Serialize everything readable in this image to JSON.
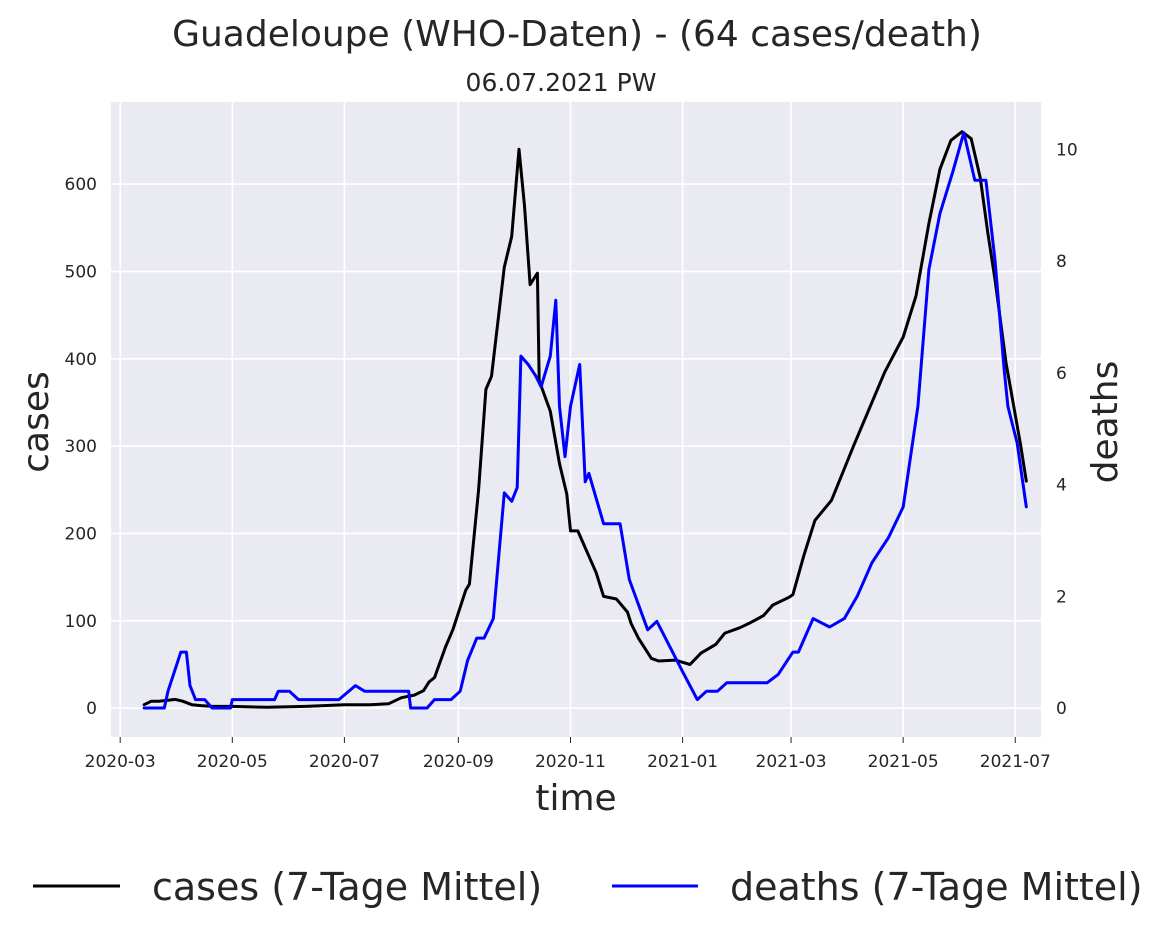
{
  "chart_data": {
    "type": "line",
    "title": "Guadeloupe (WHO-Daten) - (64 cases/death)",
    "subtitle": "06.07.2021 PW",
    "xlabel": "time",
    "ylabel_left": "cases",
    "ylabel_right": "deaths",
    "x_ticks": [
      "2020-03",
      "2020-05",
      "2020-07",
      "2020-09",
      "2020-11",
      "2021-01",
      "2021-03",
      "2021-05",
      "2021-07"
    ],
    "y_left_ticks": [
      0,
      100,
      200,
      300,
      400,
      500,
      600
    ],
    "y_right_ticks": [
      0,
      2,
      4,
      6,
      8,
      10
    ],
    "ylim_left": [
      -33,
      694
    ],
    "ylim_right": [
      -0.52,
      10.85
    ],
    "xlim": [
      "2020-02-25",
      "2021-07-15"
    ],
    "grid": true,
    "legend_placement": "bottom",
    "colors": {
      "cases": "#000000",
      "deaths": "#0000ff",
      "plot_bg": "#eaeaf2",
      "grid": "#ffffff",
      "right_label": "#0000ff"
    },
    "series": [
      {
        "name": "cases (7-Tage Mittel)",
        "axis": "left",
        "color": "#000000",
        "points": [
          [
            "2020-03-14",
            4
          ],
          [
            "2020-03-18",
            8
          ],
          [
            "2020-03-22",
            8
          ],
          [
            "2020-03-27",
            9
          ],
          [
            "2020-03-31",
            10
          ],
          [
            "2020-04-04",
            8
          ],
          [
            "2020-04-09",
            4
          ],
          [
            "2020-04-14",
            3
          ],
          [
            "2020-04-20",
            2
          ],
          [
            "2020-05-01",
            2
          ],
          [
            "2020-05-20",
            1
          ],
          [
            "2020-06-10",
            2
          ],
          [
            "2020-07-01",
            4
          ],
          [
            "2020-07-15",
            4
          ],
          [
            "2020-07-25",
            5
          ],
          [
            "2020-08-01",
            12
          ],
          [
            "2020-08-08",
            15
          ],
          [
            "2020-08-13",
            20
          ],
          [
            "2020-08-16",
            30
          ],
          [
            "2020-08-19",
            35
          ],
          [
            "2020-08-25",
            70
          ],
          [
            "2020-08-29",
            90
          ],
          [
            "2020-09-05",
            135
          ],
          [
            "2020-09-07",
            142
          ],
          [
            "2020-09-12",
            250
          ],
          [
            "2020-09-16",
            365
          ],
          [
            "2020-09-19",
            380
          ],
          [
            "2020-09-26",
            505
          ],
          [
            "2020-09-30",
            540
          ],
          [
            "2020-10-04",
            640
          ],
          [
            "2020-10-07",
            575
          ],
          [
            "2020-10-10",
            485
          ],
          [
            "2020-10-14",
            498
          ],
          [
            "2020-10-15",
            375
          ],
          [
            "2020-10-21",
            340
          ],
          [
            "2020-10-26",
            280
          ],
          [
            "2020-10-30",
            245
          ],
          [
            "2020-11-01",
            203
          ],
          [
            "2020-11-05",
            203
          ],
          [
            "2020-11-15",
            155
          ],
          [
            "2020-11-19",
            128
          ],
          [
            "2020-11-26",
            125
          ],
          [
            "2020-12-02",
            110
          ],
          [
            "2020-12-04",
            97
          ],
          [
            "2020-12-08",
            80
          ],
          [
            "2020-12-15",
            57
          ],
          [
            "2020-12-19",
            54
          ],
          [
            "2020-12-28",
            55
          ],
          [
            "2021-01-05",
            50
          ],
          [
            "2021-01-11",
            63
          ],
          [
            "2021-01-15",
            68
          ],
          [
            "2021-01-19",
            73
          ],
          [
            "2021-01-24",
            86
          ],
          [
            "2021-02-01",
            92
          ],
          [
            "2021-02-07",
            98
          ],
          [
            "2021-02-14",
            106
          ],
          [
            "2021-02-19",
            118
          ],
          [
            "2021-02-28",
            127
          ],
          [
            "2021-03-02",
            130
          ],
          [
            "2021-03-08",
            175
          ],
          [
            "2021-03-14",
            215
          ],
          [
            "2021-03-23",
            238
          ],
          [
            "2021-04-04",
            300
          ],
          [
            "2021-04-21",
            385
          ],
          [
            "2021-05-01",
            425
          ],
          [
            "2021-05-08",
            472
          ],
          [
            "2021-05-15",
            555
          ],
          [
            "2021-05-21",
            617
          ],
          [
            "2021-05-27",
            650
          ],
          [
            "2021-06-02",
            660
          ],
          [
            "2021-06-07",
            652
          ],
          [
            "2021-06-12",
            607
          ],
          [
            "2021-06-16",
            545
          ],
          [
            "2021-06-20",
            490
          ],
          [
            "2021-06-26",
            395
          ],
          [
            "2021-07-04",
            300
          ],
          [
            "2021-07-07",
            260
          ]
        ]
      },
      {
        "name": "deaths (7-Tage Mittel)",
        "axis": "right",
        "color": "#0000ff",
        "points": [
          [
            "2020-03-14",
            0.0
          ],
          [
            "2020-03-25",
            0.0
          ],
          [
            "2020-03-27",
            0.3
          ],
          [
            "2020-03-30",
            0.6
          ],
          [
            "2020-04-02",
            0.9
          ],
          [
            "2020-04-03",
            1.0
          ],
          [
            "2020-04-06",
            1.0
          ],
          [
            "2020-04-08",
            0.4
          ],
          [
            "2020-04-11",
            0.15
          ],
          [
            "2020-04-16",
            0.15
          ],
          [
            "2020-04-20",
            0.0
          ],
          [
            "2020-04-30",
            0.0
          ],
          [
            "2020-05-01",
            0.15
          ],
          [
            "2020-05-24",
            0.15
          ],
          [
            "2020-05-26",
            0.3
          ],
          [
            "2020-06-01",
            0.3
          ],
          [
            "2020-06-06",
            0.15
          ],
          [
            "2020-06-28",
            0.15
          ],
          [
            "2020-07-07",
            0.4
          ],
          [
            "2020-07-12",
            0.3
          ],
          [
            "2020-08-05",
            0.3
          ],
          [
            "2020-08-06",
            0.0
          ],
          [
            "2020-08-15",
            0.0
          ],
          [
            "2020-08-19",
            0.15
          ],
          [
            "2020-08-28",
            0.15
          ],
          [
            "2020-09-02",
            0.3
          ],
          [
            "2020-09-06",
            0.85
          ],
          [
            "2020-09-11",
            1.25
          ],
          [
            "2020-09-15",
            1.25
          ],
          [
            "2020-09-20",
            1.6
          ],
          [
            "2020-09-26",
            3.85
          ],
          [
            "2020-09-30",
            3.7
          ],
          [
            "2020-10-03",
            3.95
          ],
          [
            "2020-10-05",
            6.3
          ],
          [
            "2020-10-09",
            6.15
          ],
          [
            "2020-10-13",
            5.95
          ],
          [
            "2020-10-16",
            5.75
          ],
          [
            "2020-10-21",
            6.3
          ],
          [
            "2020-10-24",
            7.3
          ],
          [
            "2020-10-26",
            5.4
          ],
          [
            "2020-10-29",
            4.5
          ],
          [
            "2020-11-01",
            5.4
          ],
          [
            "2020-11-06",
            6.15
          ],
          [
            "2020-11-09",
            4.05
          ],
          [
            "2020-11-11",
            4.2
          ],
          [
            "2020-11-19",
            3.3
          ],
          [
            "2020-11-28",
            3.3
          ],
          [
            "2020-12-03",
            2.3
          ],
          [
            "2020-12-13",
            1.4
          ],
          [
            "2020-12-18",
            1.55
          ],
          [
            "2021-01-01",
            0.65
          ],
          [
            "2021-01-09",
            0.15
          ],
          [
            "2021-01-14",
            0.3
          ],
          [
            "2021-01-20",
            0.3
          ],
          [
            "2021-01-25",
            0.45
          ],
          [
            "2021-02-16",
            0.45
          ],
          [
            "2021-02-22",
            0.6
          ],
          [
            "2021-03-02",
            1.0
          ],
          [
            "2021-03-05",
            1.0
          ],
          [
            "2021-03-13",
            1.6
          ],
          [
            "2021-03-22",
            1.45
          ],
          [
            "2021-03-30",
            1.6
          ],
          [
            "2021-04-06",
            2.0
          ],
          [
            "2021-04-14",
            2.6
          ],
          [
            "2021-04-23",
            3.05
          ],
          [
            "2021-05-01",
            3.6
          ],
          [
            "2021-05-09",
            5.4
          ],
          [
            "2021-05-15",
            7.85
          ],
          [
            "2021-05-21",
            8.85
          ],
          [
            "2021-05-28",
            9.6
          ],
          [
            "2021-06-03",
            10.3
          ],
          [
            "2021-06-09",
            9.45
          ],
          [
            "2021-06-15",
            9.45
          ],
          [
            "2021-06-20",
            8.0
          ],
          [
            "2021-06-25",
            6.05
          ],
          [
            "2021-06-27",
            5.4
          ],
          [
            "2021-07-02",
            4.75
          ],
          [
            "2021-07-07",
            3.6
          ]
        ]
      }
    ]
  }
}
